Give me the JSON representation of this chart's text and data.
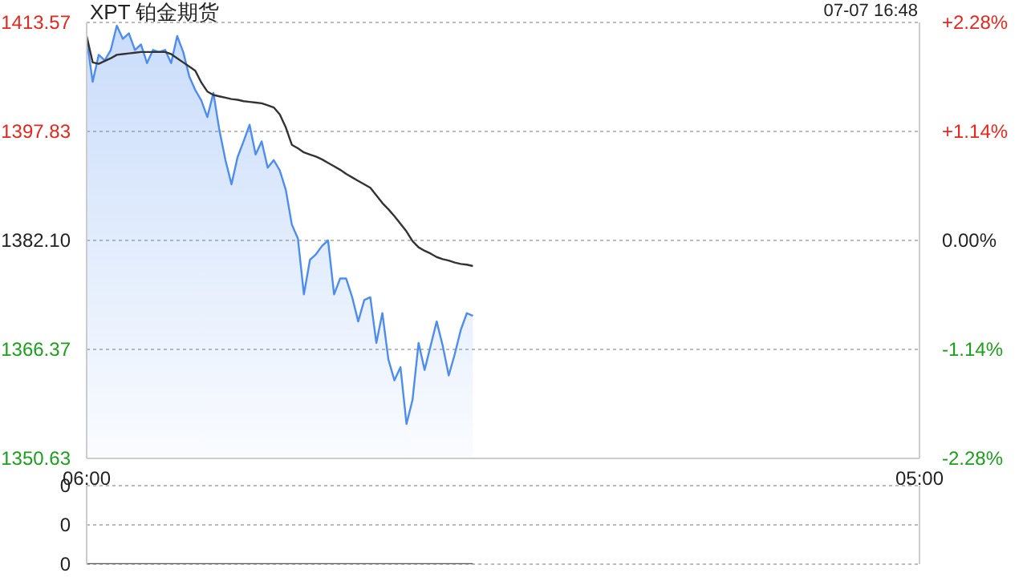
{
  "chart_data": [
    {
      "type": "area",
      "title": "XPT 铂金期货",
      "annotations": [
        "07-07 16:48"
      ],
      "categories": [
        "06:00",
        null,
        null,
        null,
        null,
        null,
        null,
        null,
        null,
        null,
        null,
        null,
        null,
        null,
        null,
        null,
        null,
        null,
        null,
        null,
        null,
        null,
        null,
        null,
        null,
        null,
        null,
        null,
        null,
        null,
        null,
        null,
        null,
        null,
        null,
        null,
        null,
        null,
        null,
        null,
        null,
        null,
        null,
        null,
        null,
        null,
        null,
        null,
        null,
        null,
        null,
        null,
        null,
        null,
        null,
        null,
        null,
        null,
        null,
        null,
        null,
        null,
        null,
        null,
        null,
        null,
        null,
        null,
        null,
        null,
        null,
        null,
        null,
        null,
        null,
        null,
        null,
        null,
        null,
        null,
        null,
        null,
        null,
        null,
        null,
        null,
        null,
        null,
        null,
        null,
        null,
        null,
        null,
        null,
        null,
        null,
        null,
        null,
        null,
        null,
        null,
        null,
        null,
        null,
        null,
        null,
        null,
        null,
        null,
        null,
        null,
        null,
        null,
        null,
        null,
        null,
        null,
        null,
        null,
        null,
        null,
        null,
        null,
        null,
        null,
        null,
        null,
        null,
        null,
        null,
        null,
        null,
        null,
        null,
        null,
        null,
        null,
        null,
        "05:00"
      ],
      "ylim": [
        1350.63,
        1413.57
      ],
      "yticks": [
        1350.63,
        1366.37,
        {
          "value": 1382.1,
          "label": "1382.10"
        },
        1397.83,
        1413.57
      ],
      "y2lim": [
        -2.28,
        2.28
      ],
      "y2ticks": [
        {
          "value": -2.28,
          "label": "-2.28%"
        },
        {
          "value": -1.14,
          "label": "-1.14%"
        },
        {
          "value": 0,
          "label": "0.00%"
        },
        {
          "value": 1.14,
          "label": "+1.14%"
        },
        {
          "value": 2.28,
          "label": "+2.28%"
        }
      ],
      "grid": "y",
      "marker": "none",
      "series": [
        {
          "color": "#4d8cf0",
          "values": [
            1411.2,
            1405.0,
            1408.9,
            1408.1,
            1409.6,
            1413.1,
            1411.2,
            1412.0,
            1409.6,
            1410.4,
            1407.7,
            1409.6,
            1409.3,
            1409.6,
            1407.7,
            1411.6,
            1409.3,
            1405.8,
            1403.8,
            1402.3,
            1399.9,
            1403.4,
            1398.0,
            1393.7,
            1390.2,
            1394.1,
            1396.4,
            1398.8,
            1394.5,
            1396.4,
            1392.6,
            1393.7,
            1392.2,
            1389.4,
            1384.4,
            1382.4,
            1374.3,
            1379.3,
            1380.1,
            1381.3,
            1382.1,
            1374.3,
            1376.6,
            1376.6,
            1373.9,
            1370.4,
            1373.5,
            1373.9,
            1367.3,
            1371.6,
            1364.9,
            1361.9,
            1363.8,
            1355.6,
            1359.1,
            1367.3,
            1363.4,
            1366.9,
            1370.4,
            1366.9,
            1362.6,
            1365.7,
            1369.2,
            1371.6,
            1371.2,
            null,
            null,
            null,
            null,
            null,
            null,
            null,
            null,
            null,
            null,
            null,
            null,
            null,
            null,
            null,
            null,
            null,
            null,
            null,
            null,
            null,
            null,
            null,
            null,
            null,
            null,
            null,
            null,
            null,
            null,
            null,
            null,
            null,
            null,
            null,
            null,
            null,
            null,
            null,
            null,
            null,
            null,
            null,
            null,
            null,
            null,
            null,
            null,
            null,
            null,
            null,
            null,
            null,
            null,
            null,
            null,
            null,
            null,
            null,
            null,
            null,
            null,
            null,
            null,
            null,
            null,
            null,
            null,
            null,
            null,
            null,
            null,
            null,
            null
          ]
        },
        {
          "type": "line",
          "color": "#333333",
          "values": [
            1411.6,
            1407.8,
            1407.6,
            1408.0,
            1408.4,
            1408.9,
            1409.0,
            1409.1,
            1409.2,
            1409.3,
            1409.3,
            1409.3,
            1409.3,
            1409.3,
            1409.0,
            1408.4,
            1407.8,
            1407.2,
            1406.6,
            1404.9,
            1403.6,
            1403.1,
            1402.9,
            1402.7,
            1402.5,
            1402.4,
            1402.2,
            1402.1,
            1402.0,
            1401.9,
            1401.6,
            1401.3,
            1400.3,
            1398.4,
            1395.9,
            1395.4,
            1394.8,
            1394.5,
            1394.2,
            1393.8,
            1393.3,
            1392.8,
            1392.3,
            1391.7,
            1391.2,
            1390.7,
            1390.2,
            1389.7,
            1388.6,
            1387.5,
            1386.6,
            1385.6,
            1384.5,
            1383.4,
            1382.0,
            1381.1,
            1380.6,
            1380.2,
            1379.7,
            1379.4,
            1379.2,
            1378.9,
            1378.7,
            1378.6,
            1378.4,
            null,
            null,
            null,
            null,
            null,
            null,
            null,
            null,
            null,
            null,
            null,
            null,
            null,
            null,
            null,
            null,
            null,
            null,
            null,
            null,
            null,
            null,
            null,
            null,
            null,
            null,
            null,
            null,
            null,
            null,
            null,
            null,
            null,
            null,
            null,
            null,
            null,
            null,
            null,
            null,
            null,
            null,
            null,
            null,
            null,
            null,
            null,
            null,
            null,
            null,
            null,
            null,
            null,
            null,
            null,
            null,
            null,
            null,
            null,
            null,
            null,
            null,
            null,
            null,
            null,
            null,
            null,
            null,
            null,
            null,
            null,
            null,
            null,
            null
          ]
        }
      ]
    },
    {
      "type": "line",
      "categories": [
        null,
        null,
        null,
        null,
        null,
        null,
        null,
        null,
        null,
        null,
        null,
        null,
        null,
        null,
        null,
        null,
        null,
        null,
        null,
        null,
        null,
        null,
        null,
        null,
        null,
        null,
        null,
        null,
        null,
        null,
        null,
        null,
        null,
        null,
        null,
        null,
        null,
        null,
        null,
        null,
        null,
        null,
        null,
        null,
        null,
        null,
        null,
        null,
        null,
        null,
        null,
        null,
        null,
        null,
        null,
        null,
        null,
        null,
        null,
        null,
        null,
        null,
        null,
        null,
        null,
        null,
        null,
        null,
        null,
        null,
        null,
        null,
        null,
        null,
        null,
        null,
        null,
        null,
        null,
        null,
        null,
        null,
        null,
        null,
        null,
        null,
        null,
        null,
        null,
        null,
        null,
        null,
        null,
        null,
        null,
        null,
        null,
        null,
        null,
        null,
        null,
        null,
        null,
        null,
        null,
        null,
        null,
        null,
        null,
        null,
        null,
        null,
        null,
        null,
        null,
        null,
        null,
        null,
        null,
        null,
        null,
        null,
        null,
        null,
        null,
        null,
        null,
        null,
        null,
        null,
        null,
        null,
        null,
        null,
        null,
        null,
        null,
        null,
        null
      ],
      "ylim": [
        0,
        0.5
      ],
      "yticks": [
        {
          "value": 0,
          "label": "0"
        },
        {
          "value": 0.25,
          "label": "0"
        },
        {
          "value": 0.5,
          "label": "0"
        }
      ],
      "grid": "y",
      "marker": "none",
      "tick_labels": "y",
      "series": [
        {
          "color": "#555555",
          "values": [
            0,
            0,
            0,
            0,
            0,
            0,
            0,
            0,
            0,
            0,
            0,
            0,
            0,
            0,
            0,
            0,
            0,
            0,
            0,
            0,
            0,
            0,
            0,
            0,
            0,
            0,
            0,
            0,
            0,
            0,
            0,
            0,
            0,
            0,
            0,
            0,
            0,
            0,
            0,
            0,
            0,
            0,
            0,
            0,
            0,
            0,
            0,
            0,
            0,
            0,
            0,
            0,
            0,
            0,
            0,
            0,
            0,
            0,
            0,
            0,
            0,
            0,
            0,
            0,
            0,
            null,
            null,
            null,
            null,
            null,
            null,
            null,
            null,
            null,
            null,
            null,
            null,
            null,
            null,
            null,
            null,
            null,
            null,
            null,
            null,
            null,
            null,
            null,
            null,
            null,
            null,
            null,
            null,
            null,
            null,
            null,
            null,
            null,
            null,
            null,
            null,
            null,
            null,
            null,
            null,
            null,
            null,
            null,
            null,
            null,
            null,
            null,
            null,
            null,
            null,
            null,
            null,
            null,
            null,
            null,
            null,
            null,
            null,
            null,
            null,
            null,
            null,
            null,
            null,
            null,
            null,
            null,
            null,
            null,
            null,
            null,
            null,
            null,
            null
          ]
        }
      ]
    }
  ]
}
